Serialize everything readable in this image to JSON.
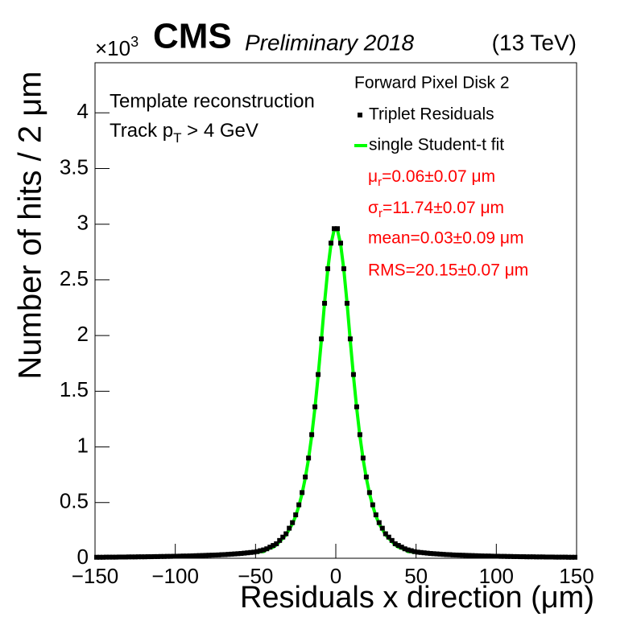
{
  "chart_data": {
    "type": "scatter",
    "title": "CMS",
    "subtitle": "Preliminary 2018",
    "energy_label": "(13 TeV)",
    "y_multiplier": {
      "base": "×10",
      "exponent": "3"
    },
    "x_label": "Residuals x direction (μm)",
    "y_label": "Number of hits / 2 μm",
    "annotations": [
      "Template reconstruction",
      {
        "base": "Track p",
        "sub": "T",
        "rest": " > 4 GeV"
      }
    ],
    "legend_title": "Forward Pixel Disk 2",
    "fit_results": [
      {
        "symbol": "μ",
        "sub": "r",
        "text": "=0.06±0.07 μm"
      },
      {
        "symbol": "σ",
        "sub": "r",
        "text": "=11.74±0.07 μm"
      },
      {
        "text": "mean=0.03±0.09 μm"
      },
      {
        "text": "RMS=20.15±0.07 μm"
      }
    ],
    "xlim": [
      -150,
      150
    ],
    "ylim": [
      0,
      4.45
    ],
    "xticks": [
      {
        "value": -150,
        "label": "−150"
      },
      {
        "value": -100,
        "label": "−100"
      },
      {
        "value": -50,
        "label": "−50"
      },
      0,
      50,
      100,
      150
    ],
    "yticks": [
      0,
      0.5,
      1,
      1.5,
      2,
      2.5,
      3,
      3.5,
      4
    ],
    "series": [
      {
        "name": "Triplet Residuals",
        "color": "#000000",
        "x": [
          -149,
          -147,
          -145,
          -143,
          -141,
          -139,
          -137,
          -135,
          -133,
          -131,
          -129,
          -127,
          -125,
          -123,
          -121,
          -119,
          -117,
          -115,
          -113,
          -111,
          -109,
          -107,
          -105,
          -103,
          -101,
          -99,
          -97,
          -95,
          -93,
          -91,
          -89,
          -87,
          -85,
          -83,
          -81,
          -79,
          -77,
          -75,
          -73,
          -71,
          -69,
          -67,
          -65,
          -63,
          -61,
          -59,
          -57,
          -55,
          -53,
          -51,
          -49,
          -47,
          -45,
          -43,
          -41,
          -39,
          -37,
          -35,
          -33,
          -31,
          -29,
          -27,
          -25,
          -23,
          -21,
          -19,
          -17,
          -15,
          -13,
          -11,
          -9,
          -7,
          -5,
          -3,
          -1,
          1,
          3,
          5,
          7,
          9,
          11,
          13,
          15,
          17,
          19,
          21,
          23,
          25,
          27,
          29,
          31,
          33,
          35,
          37,
          39,
          41,
          43,
          45,
          47,
          49,
          51,
          53,
          55,
          57,
          59,
          61,
          63,
          65,
          67,
          69,
          71,
          73,
          75,
          77,
          79,
          81,
          83,
          85,
          87,
          89,
          91,
          93,
          95,
          97,
          99,
          101,
          103,
          105,
          107,
          109,
          111,
          113,
          115,
          117,
          119,
          121,
          123,
          125,
          127,
          129,
          131,
          133,
          135,
          137,
          139,
          141,
          143,
          145,
          147,
          149
        ],
        "values": [
          0.009,
          0.009,
          0.009,
          0.01,
          0.01,
          0.01,
          0.01,
          0.011,
          0.011,
          0.011,
          0.012,
          0.012,
          0.012,
          0.013,
          0.013,
          0.013,
          0.014,
          0.014,
          0.015,
          0.015,
          0.016,
          0.016,
          0.017,
          0.017,
          0.018,
          0.018,
          0.019,
          0.02,
          0.02,
          0.021,
          0.022,
          0.023,
          0.024,
          0.025,
          0.026,
          0.027,
          0.028,
          0.029,
          0.03,
          0.032,
          0.033,
          0.035,
          0.037,
          0.039,
          0.041,
          0.043,
          0.046,
          0.049,
          0.052,
          0.055,
          0.06,
          0.068,
          0.075,
          0.085,
          0.1,
          0.115,
          0.13,
          0.16,
          0.19,
          0.22,
          0.27,
          0.32,
          0.39,
          0.48,
          0.59,
          0.73,
          0.9,
          1.11,
          1.36,
          1.65,
          1.97,
          2.29,
          2.6,
          2.83,
          2.96,
          2.96,
          2.83,
          2.6,
          2.29,
          1.97,
          1.65,
          1.36,
          1.11,
          0.9,
          0.73,
          0.59,
          0.48,
          0.39,
          0.32,
          0.27,
          0.22,
          0.19,
          0.16,
          0.13,
          0.115,
          0.1,
          0.085,
          0.075,
          0.068,
          0.06,
          0.055,
          0.052,
          0.049,
          0.046,
          0.043,
          0.041,
          0.039,
          0.037,
          0.035,
          0.033,
          0.032,
          0.03,
          0.029,
          0.028,
          0.027,
          0.026,
          0.025,
          0.024,
          0.023,
          0.022,
          0.021,
          0.02,
          0.02,
          0.019,
          0.018,
          0.018,
          0.017,
          0.017,
          0.016,
          0.016,
          0.015,
          0.015,
          0.014,
          0.014,
          0.013,
          0.013,
          0.013,
          0.012,
          0.012,
          0.012,
          0.011,
          0.011,
          0.011,
          0.01,
          0.01,
          0.01,
          0.01,
          0.009,
          0.009,
          0.009
        ]
      },
      {
        "name": "single Student-t fit",
        "color": "#00ff00",
        "x": [
          -49,
          -47,
          -45,
          -43,
          -41,
          -39,
          -37,
          -35,
          -33,
          -31,
          -29,
          -27,
          -25,
          -23,
          -21,
          -19,
          -17,
          -15,
          -13,
          -11,
          -9,
          -7,
          -5,
          -3,
          -1,
          1,
          3,
          5,
          7,
          9,
          11,
          13,
          15,
          17,
          19,
          21,
          23,
          25,
          27,
          29,
          31,
          33,
          35,
          37,
          39,
          41,
          43,
          45,
          47,
          49
        ],
        "values": [
          0.05,
          0.06,
          0.06,
          0.08,
          0.09,
          0.1,
          0.12,
          0.15,
          0.18,
          0.21,
          0.26,
          0.31,
          0.38,
          0.47,
          0.58,
          0.72,
          0.89,
          1.1,
          1.35,
          1.64,
          1.96,
          2.29,
          2.59,
          2.82,
          2.95,
          2.95,
          2.82,
          2.59,
          2.29,
          1.96,
          1.64,
          1.35,
          1.1,
          0.89,
          0.72,
          0.58,
          0.47,
          0.38,
          0.31,
          0.26,
          0.21,
          0.18,
          0.15,
          0.12,
          0.1,
          0.09,
          0.08,
          0.06,
          0.06,
          0.05
        ]
      }
    ]
  }
}
